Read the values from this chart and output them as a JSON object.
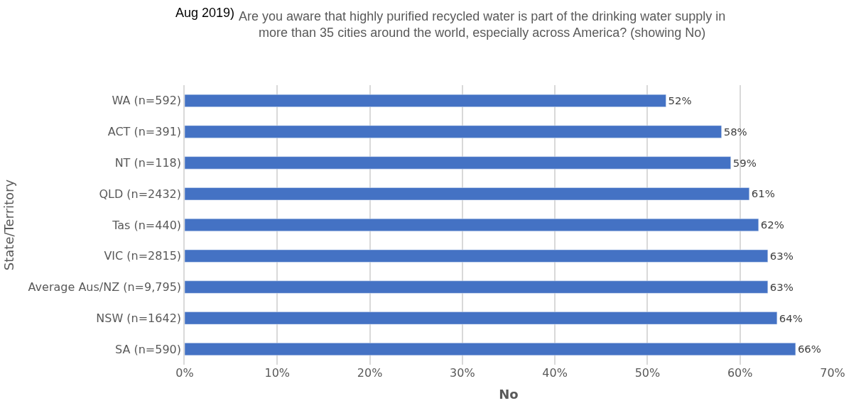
{
  "chart_data": {
    "type": "bar",
    "orientation": "horizontal",
    "title": "Are you aware that highly purified recycled water is part of the drinking water supply in\nmore than 35 cities around the world, especially across America? (showing No)",
    "annotations": [
      "Aug 2019)"
    ],
    "xlabel": "No",
    "ylabel": "State/Territory",
    "categories": [
      "WA (n=592)",
      "ACT (n=391)",
      "NT (n=118)",
      "QLD (n=2432)",
      "Tas (n=440)",
      "VIC (n=2815)",
      "Average Aus/NZ (n=9,795)",
      "NSW (n=1642)",
      "SA (n=590)"
    ],
    "values": [
      52,
      58,
      59,
      61,
      62,
      63,
      63,
      64,
      66
    ],
    "value_labels": [
      "52%",
      "58%",
      "59%",
      "61%",
      "62%",
      "63%",
      "63%",
      "64%",
      "66%"
    ],
    "color": "#4472c4",
    "xlim": [
      0,
      70
    ],
    "xticks": [
      {
        "value": 0,
        "label": "0%"
      },
      {
        "value": 10,
        "label": "10%"
      },
      {
        "value": 20,
        "label": "20%"
      },
      {
        "value": 30,
        "label": "30%"
      },
      {
        "value": 40,
        "label": "40%"
      },
      {
        "value": 50,
        "label": "50%"
      },
      {
        "value": 60,
        "label": "60%"
      },
      {
        "value": 70,
        "label": "70%"
      }
    ],
    "grid": "x",
    "legend": false
  }
}
